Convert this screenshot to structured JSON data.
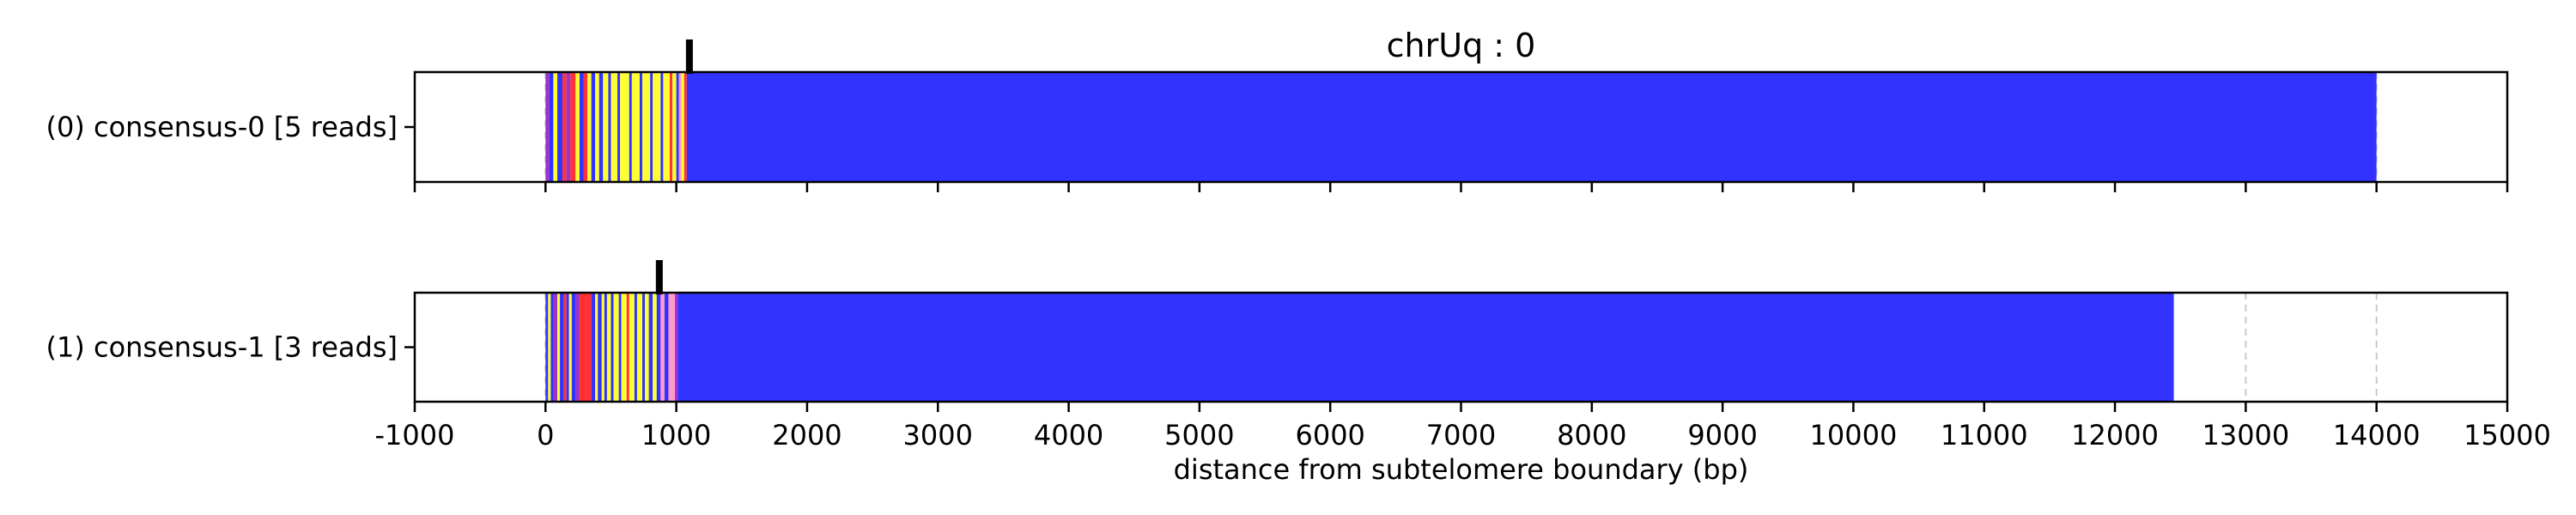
{
  "chart_data": {
    "type": "bar",
    "title": "chrUq : 0",
    "xlabel": "distance from subtelomere boundary (bp)",
    "xlim": [
      -1000,
      15000
    ],
    "xticks": [
      -1000,
      0,
      1000,
      2000,
      3000,
      4000,
      5000,
      6000,
      7000,
      8000,
      9000,
      10000,
      11000,
      12000,
      13000,
      14000,
      15000
    ],
    "grid": "vertical dashed",
    "colors": {
      "blue": "#3333ff",
      "yellow": "#ffff33",
      "red": "#ff3333",
      "purple": "#9933cc",
      "pink": "#ff99cc",
      "grid": "#c8c8c8"
    },
    "tracks": [
      {
        "label": "(0) consensus-0 [5 reads]",
        "marker_bp": 1100,
        "segments": [
          {
            "start": 0,
            "end": 30,
            "color": "purple"
          },
          {
            "start": 30,
            "end": 60,
            "color": "blue"
          },
          {
            "start": 60,
            "end": 90,
            "color": "yellow"
          },
          {
            "start": 90,
            "end": 130,
            "color": "blue"
          },
          {
            "start": 130,
            "end": 160,
            "color": "red"
          },
          {
            "start": 160,
            "end": 190,
            "color": "purple"
          },
          {
            "start": 190,
            "end": 230,
            "color": "red"
          },
          {
            "start": 230,
            "end": 260,
            "color": "yellow"
          },
          {
            "start": 260,
            "end": 290,
            "color": "blue"
          },
          {
            "start": 290,
            "end": 320,
            "color": "red"
          },
          {
            "start": 320,
            "end": 350,
            "color": "yellow"
          },
          {
            "start": 350,
            "end": 380,
            "color": "blue"
          },
          {
            "start": 380,
            "end": 410,
            "color": "yellow"
          },
          {
            "start": 410,
            "end": 440,
            "color": "blue"
          },
          {
            "start": 440,
            "end": 480,
            "color": "yellow"
          },
          {
            "start": 480,
            "end": 500,
            "color": "blue"
          },
          {
            "start": 500,
            "end": 550,
            "color": "yellow"
          },
          {
            "start": 550,
            "end": 570,
            "color": "blue"
          },
          {
            "start": 570,
            "end": 640,
            "color": "yellow"
          },
          {
            "start": 640,
            "end": 660,
            "color": "blue"
          },
          {
            "start": 660,
            "end": 720,
            "color": "yellow"
          },
          {
            "start": 720,
            "end": 740,
            "color": "blue"
          },
          {
            "start": 740,
            "end": 800,
            "color": "yellow"
          },
          {
            "start": 800,
            "end": 820,
            "color": "blue"
          },
          {
            "start": 820,
            "end": 880,
            "color": "yellow"
          },
          {
            "start": 880,
            "end": 900,
            "color": "blue"
          },
          {
            "start": 900,
            "end": 950,
            "color": "yellow"
          },
          {
            "start": 950,
            "end": 970,
            "color": "red"
          },
          {
            "start": 970,
            "end": 1000,
            "color": "yellow"
          },
          {
            "start": 1000,
            "end": 1020,
            "color": "blue"
          },
          {
            "start": 1020,
            "end": 1040,
            "color": "pink"
          },
          {
            "start": 1040,
            "end": 1060,
            "color": "yellow"
          },
          {
            "start": 1060,
            "end": 1080,
            "color": "red"
          },
          {
            "start": 1080,
            "end": 14000,
            "color": "blue"
          }
        ]
      },
      {
        "label": "(1) consensus-1 [3 reads]",
        "marker_bp": 870,
        "segments": [
          {
            "start": 0,
            "end": 20,
            "color": "blue"
          },
          {
            "start": 20,
            "end": 40,
            "color": "yellow"
          },
          {
            "start": 40,
            "end": 60,
            "color": "blue"
          },
          {
            "start": 60,
            "end": 90,
            "color": "purple"
          },
          {
            "start": 90,
            "end": 110,
            "color": "yellow"
          },
          {
            "start": 110,
            "end": 140,
            "color": "blue"
          },
          {
            "start": 140,
            "end": 160,
            "color": "red"
          },
          {
            "start": 160,
            "end": 180,
            "color": "blue"
          },
          {
            "start": 180,
            "end": 200,
            "color": "yellow"
          },
          {
            "start": 200,
            "end": 230,
            "color": "blue"
          },
          {
            "start": 230,
            "end": 260,
            "color": "purple"
          },
          {
            "start": 260,
            "end": 350,
            "color": "red"
          },
          {
            "start": 350,
            "end": 380,
            "color": "blue"
          },
          {
            "start": 380,
            "end": 400,
            "color": "yellow"
          },
          {
            "start": 400,
            "end": 430,
            "color": "blue"
          },
          {
            "start": 430,
            "end": 450,
            "color": "yellow"
          },
          {
            "start": 450,
            "end": 470,
            "color": "blue"
          },
          {
            "start": 470,
            "end": 500,
            "color": "yellow"
          },
          {
            "start": 500,
            "end": 520,
            "color": "blue"
          },
          {
            "start": 520,
            "end": 560,
            "color": "yellow"
          },
          {
            "start": 560,
            "end": 580,
            "color": "blue"
          },
          {
            "start": 580,
            "end": 620,
            "color": "yellow"
          },
          {
            "start": 620,
            "end": 640,
            "color": "red"
          },
          {
            "start": 640,
            "end": 680,
            "color": "yellow"
          },
          {
            "start": 680,
            "end": 700,
            "color": "blue"
          },
          {
            "start": 700,
            "end": 740,
            "color": "yellow"
          },
          {
            "start": 740,
            "end": 760,
            "color": "blue"
          },
          {
            "start": 760,
            "end": 790,
            "color": "yellow"
          },
          {
            "start": 790,
            "end": 820,
            "color": "blue"
          },
          {
            "start": 820,
            "end": 850,
            "color": "yellow"
          },
          {
            "start": 850,
            "end": 880,
            "color": "blue"
          },
          {
            "start": 880,
            "end": 910,
            "color": "pink"
          },
          {
            "start": 910,
            "end": 940,
            "color": "blue"
          },
          {
            "start": 940,
            "end": 990,
            "color": "pink"
          },
          {
            "start": 990,
            "end": 1010,
            "color": "purple"
          },
          {
            "start": 1010,
            "end": 12450,
            "color": "blue"
          }
        ]
      }
    ]
  }
}
